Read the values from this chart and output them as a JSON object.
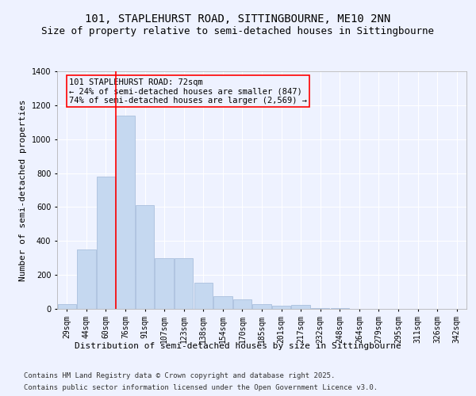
{
  "title": "101, STAPLEHURST ROAD, SITTINGBOURNE, ME10 2NN",
  "subtitle": "Size of property relative to semi-detached houses in Sittingbourne",
  "xlabel": "Distribution of semi-detached houses by size in Sittingbourne",
  "ylabel": "Number of semi-detached properties",
  "categories": [
    "29sqm",
    "44sqm",
    "60sqm",
    "76sqm",
    "91sqm",
    "107sqm",
    "123sqm",
    "138sqm",
    "154sqm",
    "170sqm",
    "185sqm",
    "201sqm",
    "217sqm",
    "232sqm",
    "248sqm",
    "264sqm",
    "279sqm",
    "295sqm",
    "311sqm",
    "326sqm",
    "342sqm"
  ],
  "values": [
    30,
    350,
    780,
    1140,
    610,
    300,
    300,
    155,
    75,
    55,
    30,
    20,
    25,
    5,
    3,
    2,
    1,
    1,
    0,
    0,
    0
  ],
  "bar_color": "#c5d8f0",
  "bar_edge_color": "#a0b8d8",
  "vline_color": "red",
  "annotation_title": "101 STAPLEHURST ROAD: 72sqm",
  "annotation_line1": "← 24% of semi-detached houses are smaller (847)",
  "annotation_line2": "74% of semi-detached houses are larger (2,569) →",
  "annotation_box_color": "red",
  "ylim": [
    0,
    1400
  ],
  "yticks": [
    0,
    200,
    400,
    600,
    800,
    1000,
    1200,
    1400
  ],
  "footer_line1": "Contains HM Land Registry data © Crown copyright and database right 2025.",
  "footer_line2": "Contains public sector information licensed under the Open Government Licence v3.0.",
  "bg_color": "#eef2ff",
  "grid_color": "#ffffff",
  "title_fontsize": 10,
  "subtitle_fontsize": 9,
  "axis_label_fontsize": 8,
  "tick_fontsize": 7,
  "footer_fontsize": 6.5,
  "annotation_fontsize": 7.5
}
